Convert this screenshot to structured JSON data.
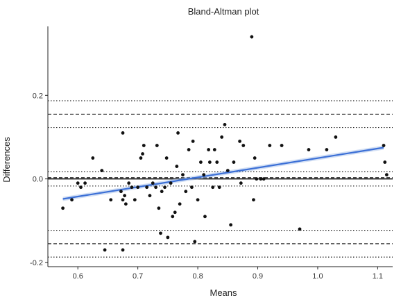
{
  "chart_data": {
    "type": "scatter",
    "title": "Bland-Altman plot",
    "xlabel": "Means",
    "ylabel": "Differences",
    "xlim": [
      0.55,
      1.125
    ],
    "ylim": [
      -0.21,
      0.365
    ],
    "xticks": [
      0.6,
      0.7,
      0.8,
      0.9,
      1.0,
      1.1
    ],
    "xtick_labels": [
      "0.6",
      "0.7",
      "0.8",
      "0.9",
      "1.0",
      "1.1"
    ],
    "yticks": [
      -0.2,
      0.0,
      0.2
    ],
    "ytick_labels": [
      "-0.2",
      "0.0",
      "0.2"
    ],
    "grid": false,
    "colors": {
      "points": "#111111",
      "regression": "#3b6fd6",
      "band": "#9bb7e6",
      "reference": "#000000"
    },
    "points": [
      {
        "x": 0.575,
        "y": -0.07
      },
      {
        "x": 0.59,
        "y": -0.05
      },
      {
        "x": 0.6,
        "y": -0.01
      },
      {
        "x": 0.605,
        "y": -0.02
      },
      {
        "x": 0.612,
        "y": -0.01
      },
      {
        "x": 0.625,
        "y": 0.05
      },
      {
        "x": 0.64,
        "y": 0.02
      },
      {
        "x": 0.645,
        "y": -0.17
      },
      {
        "x": 0.655,
        "y": -0.05
      },
      {
        "x": 0.672,
        "y": -0.03
      },
      {
        "x": 0.675,
        "y": 0.11
      },
      {
        "x": 0.675,
        "y": -0.05
      },
      {
        "x": 0.675,
        "y": -0.17
      },
      {
        "x": 0.678,
        "y": -0.04
      },
      {
        "x": 0.68,
        "y": -0.06
      },
      {
        "x": 0.685,
        "y": -0.01
      },
      {
        "x": 0.69,
        "y": -0.02
      },
      {
        "x": 0.695,
        "y": -0.05
      },
      {
        "x": 0.7,
        "y": -0.02
      },
      {
        "x": 0.705,
        "y": 0.05
      },
      {
        "x": 0.708,
        "y": 0.06
      },
      {
        "x": 0.71,
        "y": 0.08
      },
      {
        "x": 0.715,
        "y": -0.02
      },
      {
        "x": 0.72,
        "y": -0.04
      },
      {
        "x": 0.725,
        "y": -0.01
      },
      {
        "x": 0.73,
        "y": -0.02
      },
      {
        "x": 0.732,
        "y": 0.08
      },
      {
        "x": 0.735,
        "y": -0.07
      },
      {
        "x": 0.738,
        "y": -0.13
      },
      {
        "x": 0.74,
        "y": -0.03
      },
      {
        "x": 0.745,
        "y": -0.02
      },
      {
        "x": 0.748,
        "y": 0.05
      },
      {
        "x": 0.75,
        "y": -0.14
      },
      {
        "x": 0.755,
        "y": -0.01
      },
      {
        "x": 0.758,
        "y": -0.09
      },
      {
        "x": 0.762,
        "y": -0.08
      },
      {
        "x": 0.765,
        "y": 0.03
      },
      {
        "x": 0.767,
        "y": 0.11
      },
      {
        "x": 0.77,
        "y": -0.06
      },
      {
        "x": 0.775,
        "y": 0.01
      },
      {
        "x": 0.78,
        "y": -0.03
      },
      {
        "x": 0.785,
        "y": 0.07
      },
      {
        "x": 0.79,
        "y": -0.02
      },
      {
        "x": 0.792,
        "y": 0.09
      },
      {
        "x": 0.795,
        "y": -0.15
      },
      {
        "x": 0.8,
        "y": -0.05
      },
      {
        "x": 0.805,
        "y": 0.04
      },
      {
        "x": 0.81,
        "y": 0.01
      },
      {
        "x": 0.812,
        "y": -0.09
      },
      {
        "x": 0.818,
        "y": 0.07
      },
      {
        "x": 0.82,
        "y": 0.04
      },
      {
        "x": 0.825,
        "y": -0.02
      },
      {
        "x": 0.828,
        "y": 0.07
      },
      {
        "x": 0.832,
        "y": 0.04
      },
      {
        "x": 0.836,
        "y": -0.02
      },
      {
        "x": 0.84,
        "y": 0.1
      },
      {
        "x": 0.845,
        "y": 0.13
      },
      {
        "x": 0.85,
        "y": 0.02
      },
      {
        "x": 0.855,
        "y": -0.11
      },
      {
        "x": 0.86,
        "y": 0.04
      },
      {
        "x": 0.87,
        "y": 0.09
      },
      {
        "x": 0.872,
        "y": -0.01
      },
      {
        "x": 0.876,
        "y": 0.08
      },
      {
        "x": 0.89,
        "y": 0.34
      },
      {
        "x": 0.893,
        "y": -0.05
      },
      {
        "x": 0.895,
        "y": 0.05
      },
      {
        "x": 0.898,
        "y": 0.0
      },
      {
        "x": 0.905,
        "y": 0.0
      },
      {
        "x": 0.91,
        "y": 0.0
      },
      {
        "x": 0.92,
        "y": 0.08
      },
      {
        "x": 0.94,
        "y": 0.08
      },
      {
        "x": 0.97,
        "y": -0.12
      },
      {
        "x": 0.985,
        "y": 0.07
      },
      {
        "x": 1.015,
        "y": 0.07
      },
      {
        "x": 1.03,
        "y": 0.1
      },
      {
        "x": 1.11,
        "y": 0.08
      },
      {
        "x": 1.112,
        "y": 0.04
      },
      {
        "x": 1.115,
        "y": 0.01
      }
    ],
    "regression": {
      "x": [
        0.575,
        1.11
      ],
      "y": [
        -0.048,
        0.075
      ]
    },
    "reference_lines": [
      {
        "y": 0.0,
        "style": "solid"
      },
      {
        "y": 0.003,
        "style": "dashed"
      },
      {
        "y": 0.017,
        "style": "dotted"
      },
      {
        "y": -0.017,
        "style": "dotted"
      },
      {
        "y": 0.155,
        "style": "dashed"
      },
      {
        "y": 0.123,
        "style": "dotted"
      },
      {
        "y": 0.187,
        "style": "dotted"
      },
      {
        "y": -0.155,
        "style": "dashed"
      },
      {
        "y": -0.123,
        "style": "dotted"
      },
      {
        "y": -0.187,
        "style": "dotted"
      }
    ]
  }
}
